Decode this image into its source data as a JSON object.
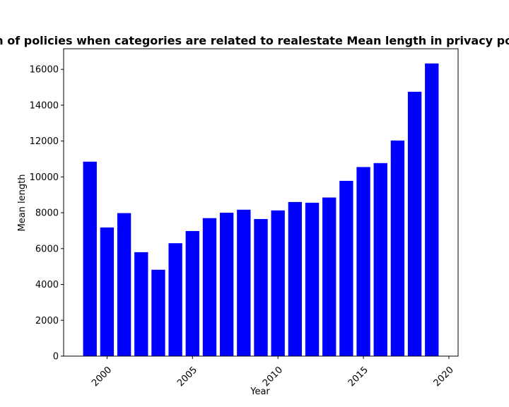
{
  "chart_data": {
    "type": "bar",
    "title": "Mean length of policies when categories are related to realestate Mean length in privacy policies by Year",
    "xlabel": "Year",
    "ylabel": "Mean length",
    "x": [
      1999,
      2000,
      2001,
      2002,
      2003,
      2004,
      2005,
      2006,
      2007,
      2008,
      2009,
      2010,
      2011,
      2012,
      2013,
      2014,
      2015,
      2016,
      2017,
      2018,
      2019
    ],
    "values": [
      10850,
      7180,
      7980,
      5800,
      4820,
      6300,
      6980,
      7700,
      8000,
      8170,
      7650,
      8130,
      8600,
      8560,
      8850,
      9780,
      10550,
      10770,
      12030,
      14750,
      16330
    ],
    "xticks": [
      "2000",
      "2005",
      "2010",
      "2015",
      "2020"
    ],
    "yticks": [
      "0",
      "2000",
      "4000",
      "6000",
      "8000",
      "10000",
      "12000",
      "14000",
      "16000"
    ],
    "xlim": [
      1997.46,
      2020.54
    ],
    "ylim": [
      0,
      17150
    ],
    "bar_color": "#0000ff",
    "grid": false,
    "legend": "none"
  }
}
